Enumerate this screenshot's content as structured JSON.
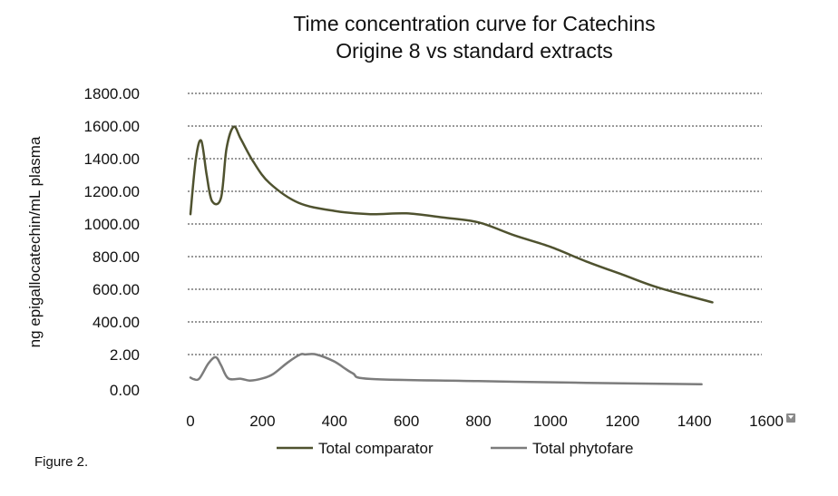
{
  "caption": "Figure 2.",
  "chart_data": {
    "type": "line",
    "title": [
      "Time concentration curve for Catechins",
      "Origine 8 vs standard extracts"
    ],
    "xlabel": "",
    "ylabel": "ng epigallocatechin/mL plasma",
    "xlim": [
      0,
      1600
    ],
    "x_ticks": [
      "0",
      "200",
      "400",
      "600",
      "800",
      "1000",
      "1200",
      "1400",
      "1600"
    ],
    "y_ticks": [
      "0.00",
      "2.00",
      "400.00",
      "600.00",
      "800.00",
      "1000.00",
      "1200.00",
      "1400.00",
      "1600.00",
      "1800.00"
    ],
    "grid": true,
    "legend_position": "bottom",
    "series": [
      {
        "name": "Total comparator",
        "color": "#4f522f",
        "points": [
          [
            0,
            1060
          ],
          [
            15,
            1400
          ],
          [
            30,
            1510
          ],
          [
            45,
            1300
          ],
          [
            60,
            1140
          ],
          [
            85,
            1160
          ],
          [
            100,
            1460
          ],
          [
            120,
            1595
          ],
          [
            140,
            1520
          ],
          [
            175,
            1380
          ],
          [
            220,
            1250
          ],
          [
            300,
            1130
          ],
          [
            400,
            1080
          ],
          [
            500,
            1060
          ],
          [
            600,
            1065
          ],
          [
            700,
            1040
          ],
          [
            800,
            1010
          ],
          [
            900,
            930
          ],
          [
            1000,
            860
          ],
          [
            1100,
            770
          ],
          [
            1200,
            690
          ],
          [
            1300,
            610
          ],
          [
            1450,
            520
          ]
        ]
      },
      {
        "name": "Total phytofare",
        "color": "#7c7c7c",
        "points": [
          [
            0,
            0.7
          ],
          [
            10,
            0.6
          ],
          [
            25,
            0.65
          ],
          [
            50,
            1.5
          ],
          [
            70,
            1.85
          ],
          [
            85,
            1.4
          ],
          [
            105,
            0.65
          ],
          [
            140,
            0.63
          ],
          [
            165,
            0.53
          ],
          [
            200,
            0.65
          ],
          [
            230,
            0.9
          ],
          [
            270,
            1.55
          ],
          [
            305,
            2.35
          ],
          [
            320,
            2.65
          ],
          [
            350,
            2.45
          ],
          [
            400,
            1.6
          ],
          [
            450,
            0.95
          ],
          [
            500,
            0.62
          ],
          [
            800,
            0.5
          ],
          [
            1100,
            0.4
          ],
          [
            1420,
            0.32
          ]
        ]
      }
    ]
  }
}
